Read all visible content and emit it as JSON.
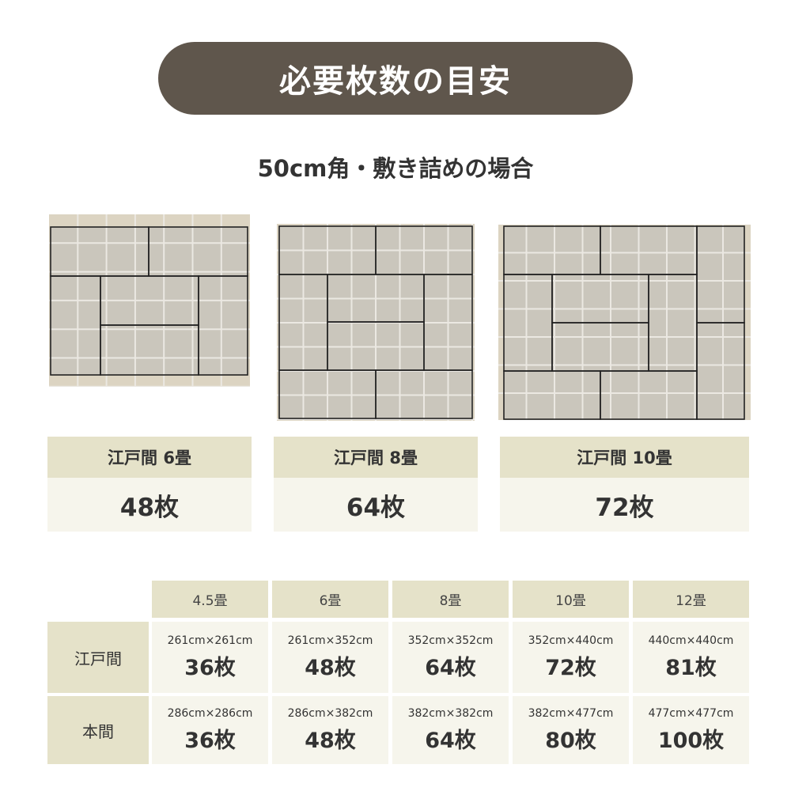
{
  "title": "必要枚数の目安",
  "subtitle": "50cm角・敷き詰めの場合",
  "colors": {
    "title_bg": "#5f564c",
    "header_bg": "#e5e2c9",
    "cell_bg": "#f6f5ec",
    "tile": "#cac6bc",
    "tile_edge": "#dcd4c2",
    "tatami_line": "#222222"
  },
  "cards": [
    {
      "label": "江戸間 6畳",
      "count": "48枚"
    },
    {
      "label": "江戸間 8畳",
      "count": "64枚"
    },
    {
      "label": "江戸間 10畳",
      "count": "72枚"
    }
  ],
  "table": {
    "columns": [
      "4.5畳",
      "6畳",
      "8畳",
      "10畳",
      "12畳"
    ],
    "rows": [
      {
        "label": "江戸間",
        "cells": [
          {
            "dim": "261cm×261cm",
            "count": "36枚"
          },
          {
            "dim": "261cm×352cm",
            "count": "48枚"
          },
          {
            "dim": "352cm×352cm",
            "count": "64枚"
          },
          {
            "dim": "352cm×440cm",
            "count": "72枚"
          },
          {
            "dim": "440cm×440cm",
            "count": "81枚"
          }
        ]
      },
      {
        "label": "本間",
        "cells": [
          {
            "dim": "286cm×286cm",
            "count": "36枚"
          },
          {
            "dim": "286cm×382cm",
            "count": "48枚"
          },
          {
            "dim": "382cm×382cm",
            "count": "64枚"
          },
          {
            "dim": "382cm×477cm",
            "count": "80枚"
          },
          {
            "dim": "477cm×477cm",
            "count": "100枚"
          }
        ]
      }
    ]
  }
}
